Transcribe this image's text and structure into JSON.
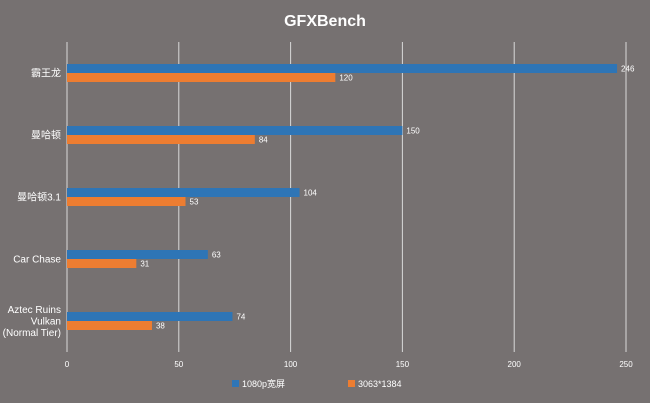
{
  "chart_data": {
    "type": "bar",
    "orientation": "horizontal",
    "title": "GFXBench",
    "categories": [
      "霸王龙",
      "曼哈顿",
      "曼哈顿3.1",
      "Car Chase",
      "Aztec Ruins Vulkan (Normal Tier)"
    ],
    "category_lines": [
      [
        "霸王龙"
      ],
      [
        "曼哈顿"
      ],
      [
        "曼哈顿3.1"
      ],
      [
        "Car Chase"
      ],
      [
        "Aztec Ruins",
        "Vulkan",
        "(Normal Tier)"
      ]
    ],
    "series": [
      {
        "name": "1080p宽屏",
        "values": [
          246,
          150,
          104,
          63,
          74
        ],
        "color": "#2e75b6"
      },
      {
        "name": "3063*1384",
        "values": [
          120,
          84,
          53,
          31,
          38
        ],
        "color": "#ed7d31"
      }
    ],
    "xlim": [
      0,
      250
    ],
    "xticks": [
      0,
      50,
      100,
      150,
      200,
      250
    ],
    "grid": true,
    "legend_position": "bottom"
  }
}
